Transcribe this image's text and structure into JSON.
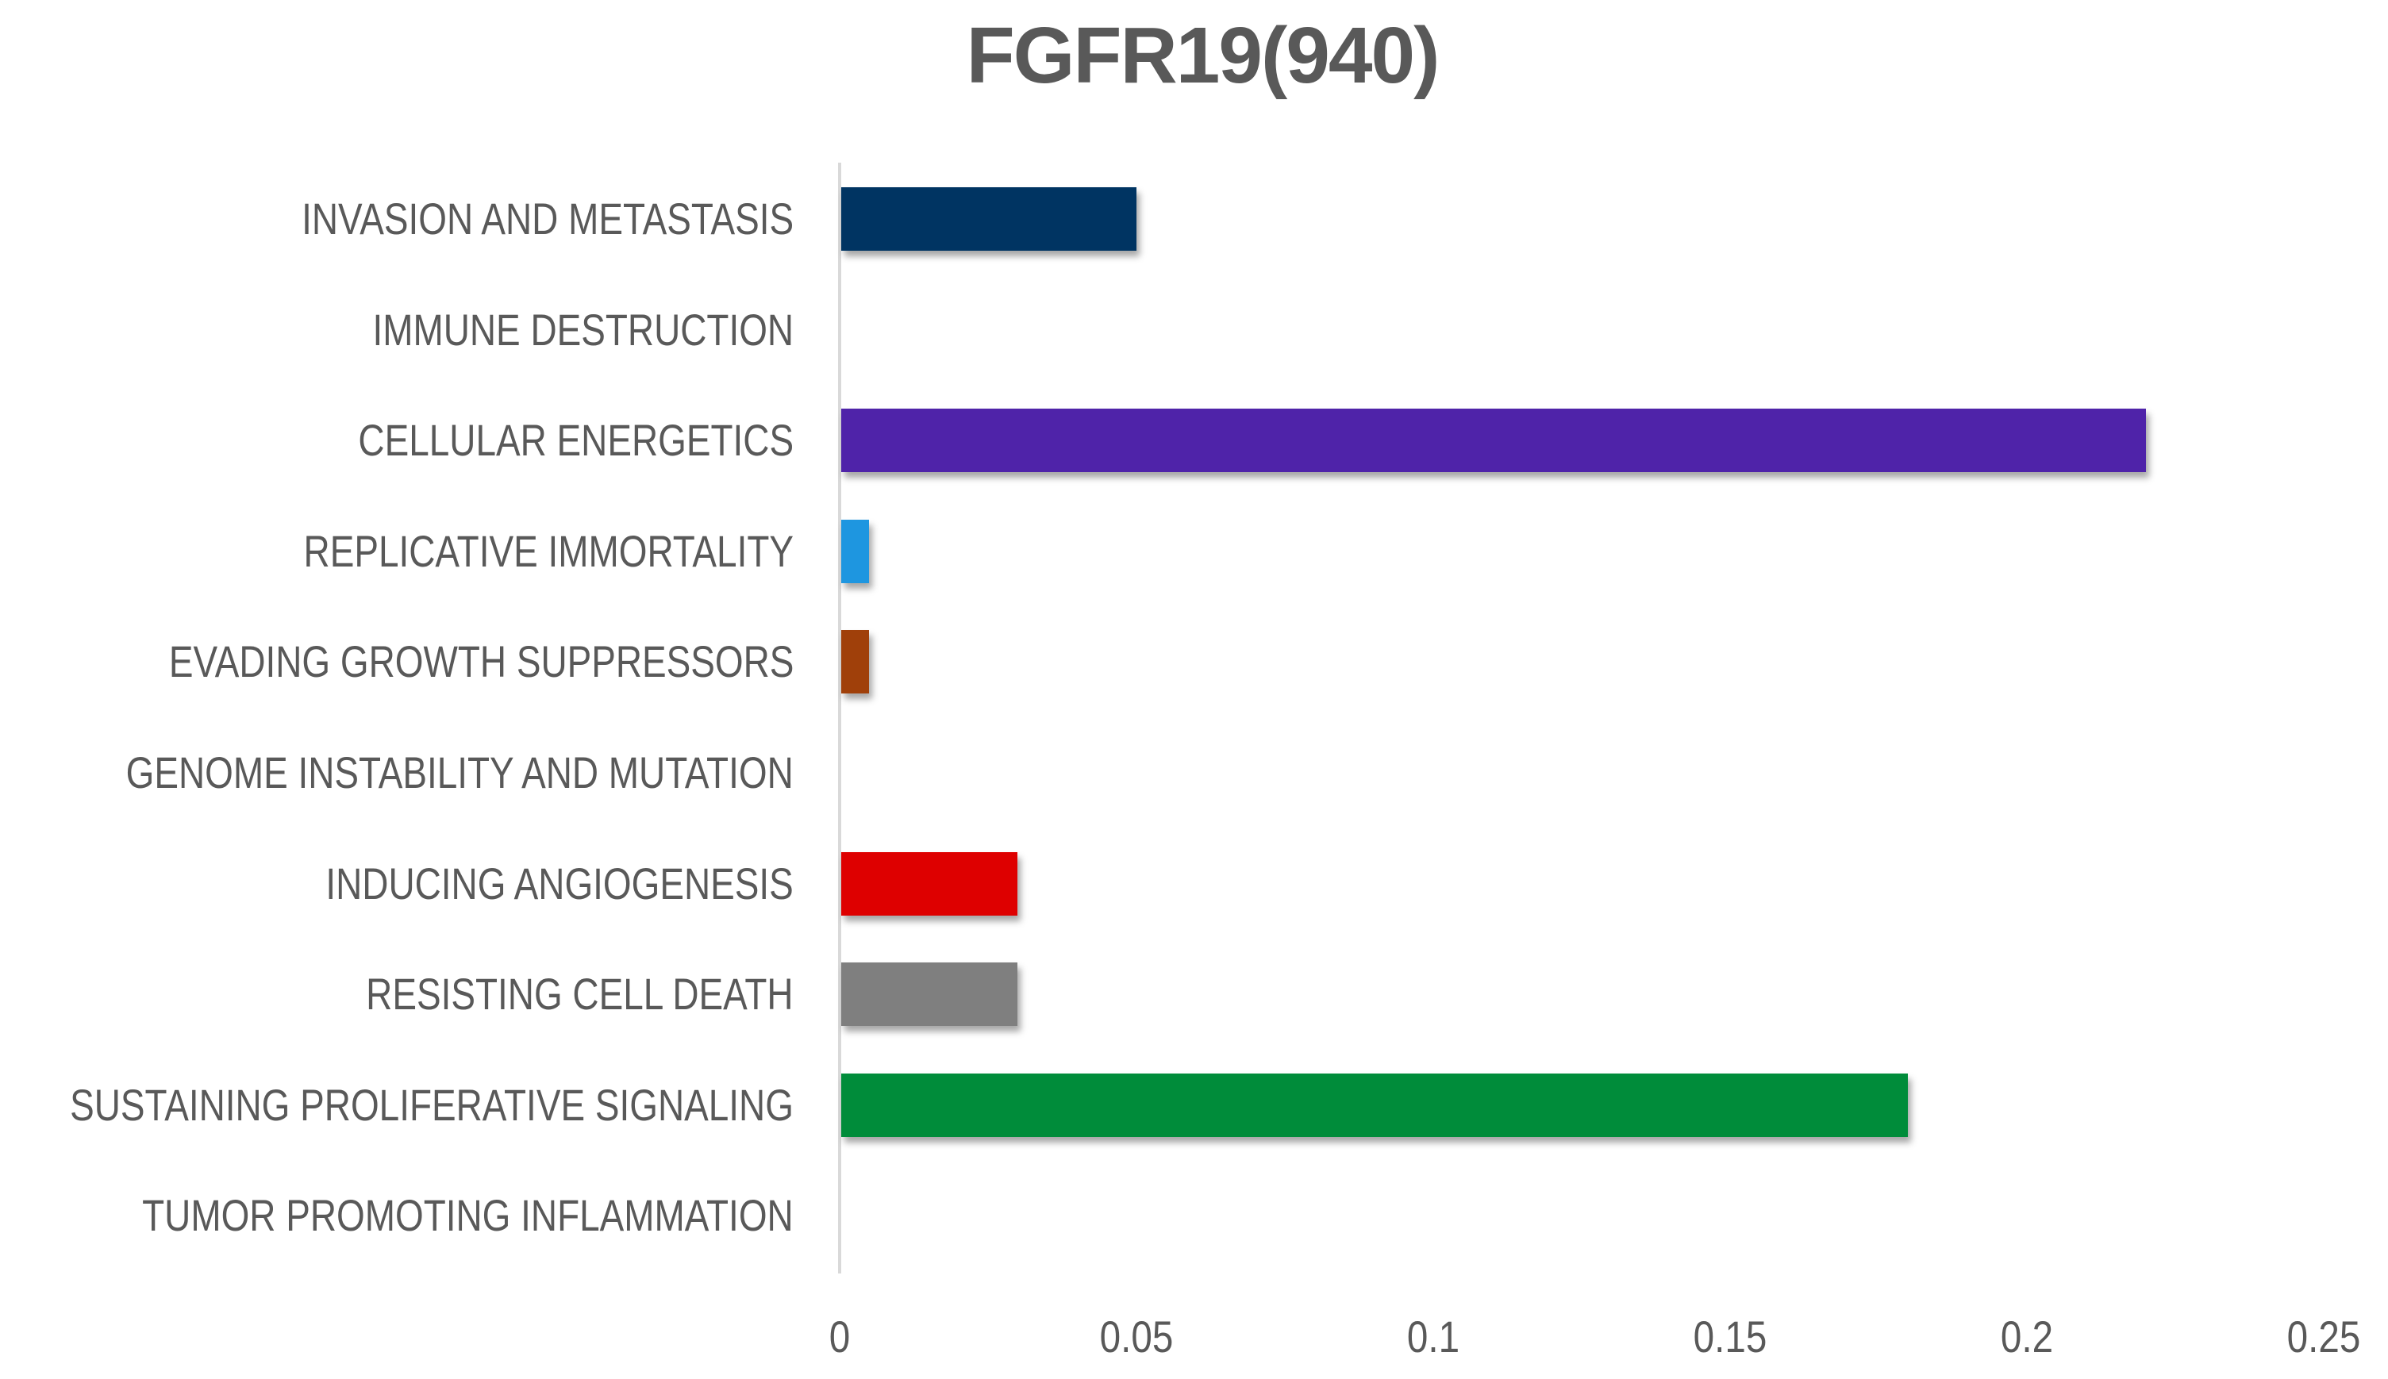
{
  "chart_data": {
    "type": "bar",
    "orientation": "horizontal",
    "title": "FGFR19(940)",
    "xlabel": "",
    "ylabel": "",
    "xlim": [
      0,
      0.25
    ],
    "x_ticks": [
      "0",
      "0.05",
      "0.1",
      "0.15",
      "0.2",
      "0.25"
    ],
    "grid": false,
    "legend": null,
    "categories": [
      "INVASION AND METASTASIS",
      "IMMUNE DESTRUCTION",
      "CELLULAR ENERGETICS",
      "REPLICATIVE IMMORTALITY",
      "EVADING GROWTH SUPPRESSORS",
      "GENOME INSTABILITY AND MUTATION",
      "INDUCING ANGIOGENESIS",
      "RESISTING CELL DEATH",
      "SUSTAINING PROLIFERATIVE SIGNALING",
      "TUMOR PROMOTING INFLAMMATION"
    ],
    "values": [
      0.05,
      0,
      0.22,
      0.005,
      0.005,
      0,
      0.03,
      0.03,
      0.18,
      0
    ],
    "colors": [
      "#003462",
      null,
      "#4f23a9",
      "#1e96e0",
      "#a0400a",
      null,
      "#de0000",
      "#7f7f7f",
      "#008c3a",
      null
    ]
  }
}
